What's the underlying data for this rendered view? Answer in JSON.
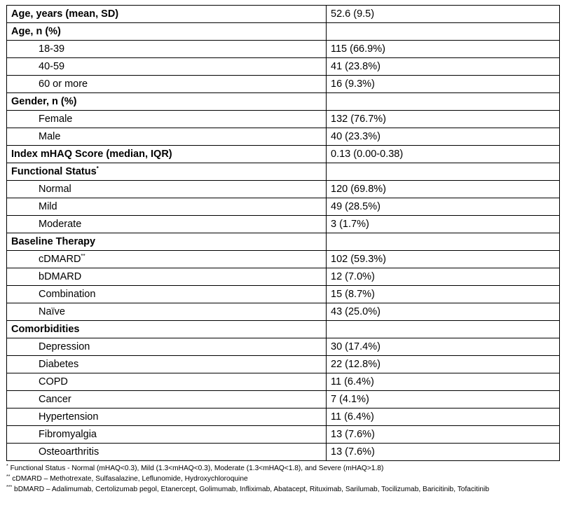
{
  "table": {
    "sections": [
      {
        "header": "Age, years (mean, SD)",
        "value": "52.6 (9.5)"
      },
      {
        "header": "Age, n (%)",
        "items": [
          {
            "label": "18-39",
            "value": "115 (66.9%)"
          },
          {
            "label": "40-59",
            "value": "41 (23.8%)"
          },
          {
            "label": "60 or more",
            "value": "16 (9.3%)"
          }
        ]
      },
      {
        "header": "Gender, n (%)",
        "items": [
          {
            "label": "Female",
            "value": "132 (76.7%)"
          },
          {
            "label": "Male",
            "value": "40 (23.3%)"
          }
        ]
      },
      {
        "header": "Index mHAQ Score (median, IQR)",
        "value": "0.13 (0.00-0.38)"
      },
      {
        "header": "Functional Status",
        "sup": "*",
        "items": [
          {
            "label": "Normal",
            "value": "120 (69.8%)"
          },
          {
            "label": "Mild",
            "value": "49 (28.5%)"
          },
          {
            "label": "Moderate",
            "value": "3 (1.7%)"
          }
        ]
      },
      {
        "header": "Baseline Therapy",
        "items": [
          {
            "label": "cDMARD",
            "sup": "**",
            "value": "102 (59.3%)"
          },
          {
            "label": "bDMARD",
            "value": "12 (7.0%)"
          },
          {
            "label": "Combination",
            "value": "15 (8.7%)"
          },
          {
            "label": "Naïve",
            "value": "43 (25.0%)"
          }
        ]
      },
      {
        "header": "Comorbidities",
        "items": [
          {
            "label": "Depression",
            "value": "30 (17.4%)"
          },
          {
            "label": "Diabetes",
            "value": "22 (12.8%)"
          },
          {
            "label": "COPD",
            "value": "11 (6.4%)"
          },
          {
            "label": "Cancer",
            "value": "7 (4.1%)"
          },
          {
            "label": "Hypertension",
            "value": "11 (6.4%)"
          },
          {
            "label": "Fibromyalgia",
            "value": "13 (7.6%)"
          },
          {
            "label": "Osteoarthritis",
            "value": "13 (7.6%)"
          }
        ]
      }
    ]
  },
  "footnotes": [
    {
      "mark": "*",
      "text": "Functional Status - Normal (mHAQ<0.3), Mild (1.3<mHAQ<0.3), Moderate (1.3<mHAQ<1.8), and Severe (mHAQ>1.8)"
    },
    {
      "mark": "**",
      "text": "cDMARD – Methotrexate, Sulfasalazine, Leflunomide, Hydroxychloroquine"
    },
    {
      "mark": "***",
      "text": "bDMARD – Adalimumab, Certolizumab pegol, Etanercept, Golimumab, Infliximab, Abatacept, Rituximab, Sarilumab, Tocilizumab, Baricitinib, Tofacitinib"
    }
  ]
}
